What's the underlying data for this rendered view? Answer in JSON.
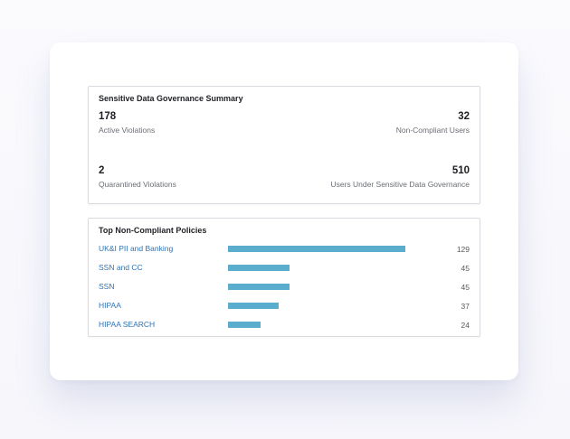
{
  "summary": {
    "title": "Sensitive Data Governance Summary",
    "stats": {
      "active_violations": {
        "value": "178",
        "label": "Active Violations"
      },
      "non_compliant_users": {
        "value": "32",
        "label": "Non-Compliant Users"
      },
      "quarantined_violations": {
        "value": "2",
        "label": "Quarantined Violations"
      },
      "users_under_governance": {
        "value": "510",
        "label": "Users Under Sensitive Data Governance"
      }
    }
  },
  "policies": {
    "title": "Top Non-Compliant Policies",
    "bar_color": "#5aadcc",
    "max_count": 129,
    "items": [
      {
        "name": "UK&I PII and Banking",
        "count": "129",
        "fraction": 1.0
      },
      {
        "name": "SSN and CC",
        "count": "45",
        "fraction": 0.349
      },
      {
        "name": "SSN",
        "count": "45",
        "fraction": 0.349
      },
      {
        "name": "HIPAA",
        "count": "37",
        "fraction": 0.287
      },
      {
        "name": "HIPAA SEARCH",
        "count": "24",
        "fraction": 0.186
      }
    ]
  }
}
